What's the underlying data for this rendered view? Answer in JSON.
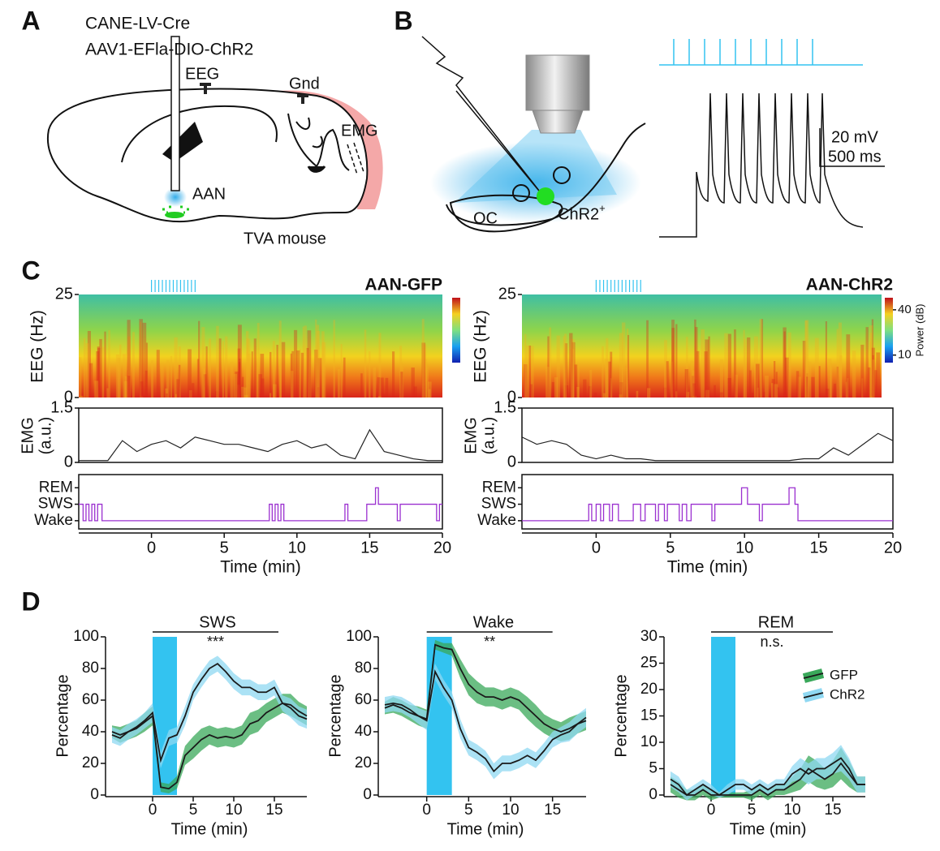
{
  "panel_labels": [
    "A",
    "B",
    "C",
    "D"
  ],
  "schematic_a": {
    "virus_lines": [
      "CANE-LV-Cre",
      "AAV1-EFla-DIO-ChR2"
    ],
    "eeg": "EEG",
    "gnd": "Gnd",
    "emg": "EMG",
    "aan": "AAN",
    "mouse": "TVA mouse"
  },
  "schematic_b": {
    "oc": "OC",
    "chr2": "ChR2",
    "chr2_sup": "+",
    "scale_v": "20 mV",
    "scale_t": "500 ms"
  },
  "chart_data": [
    {
      "type": "recording",
      "title": "AAN-GFP",
      "title_color": "#1f9a4b",
      "xlim": [
        -5,
        20
      ],
      "xticks": [
        0,
        5,
        10,
        15,
        20
      ],
      "xlabel": "Time (min)",
      "stimulus": [
        0,
        3
      ],
      "stimulus_color": "#33c3f0",
      "eeg": {
        "ylabel": "EEG (Hz)",
        "ylim": [
          0,
          25
        ],
        "yticks": [
          0,
          25
        ]
      },
      "emg": {
        "ylabel": [
          "EMG",
          "(a.u.)"
        ],
        "ylim": [
          0,
          1.5
        ],
        "yticks": [
          0,
          1.5
        ],
        "color": "#222222",
        "x": [
          -5,
          -4,
          -3,
          -2,
          -1,
          0,
          1,
          2,
          3,
          4,
          5,
          6,
          7,
          8,
          9,
          10,
          11,
          12,
          13,
          14,
          15,
          16,
          17,
          18,
          19,
          20
        ],
        "values": [
          0.05,
          0.05,
          0.05,
          0.6,
          0.3,
          0.5,
          0.6,
          0.4,
          0.7,
          0.6,
          0.5,
          0.5,
          0.4,
          0.3,
          0.5,
          0.6,
          0.4,
          0.5,
          0.2,
          0.1,
          0.9,
          0.3,
          0.2,
          0.1,
          0.05,
          0.05
        ]
      },
      "hypnogram": {
        "ylim": [
          -0.5,
          2.8
        ],
        "yticks": [
          {
            "value": 0,
            "label": "Wake"
          },
          {
            "value": 1,
            "label": "SWS"
          },
          {
            "value": 2,
            "label": "REM"
          }
        ],
        "color": "#9b30d0",
        "x": [
          -5,
          -4.7,
          -4.5,
          -4.3,
          -4.1,
          -3.9,
          -3.7,
          -3.4,
          8.1,
          8.3,
          8.5,
          8.7,
          8.9,
          9.1,
          13.3,
          13.5,
          14.8,
          15.4,
          15.6,
          16.9,
          17.1,
          19.6,
          19.8,
          20
        ],
        "values": [
          1,
          0,
          1,
          0,
          1,
          0,
          1,
          0,
          1,
          0,
          1,
          0,
          1,
          0,
          1,
          0,
          1,
          2,
          1,
          0,
          1,
          0,
          1,
          1
        ]
      }
    },
    {
      "type": "recording",
      "title": "AAN-ChR2",
      "title_color": "#33b5e5",
      "xlim": [
        -5,
        20
      ],
      "xticks": [
        0,
        5,
        10,
        15,
        20
      ],
      "xlabel": "Time (min)",
      "stimulus": [
        0,
        3
      ],
      "stimulus_color": "#33c3f0",
      "eeg": {
        "ylabel": "EEG (Hz)",
        "ylim": [
          0,
          25
        ],
        "yticks": [
          0,
          25
        ]
      },
      "colorbar": {
        "label": "Power (dB)",
        "clim": [
          5,
          48
        ],
        "ticks": [
          10,
          40
        ]
      },
      "emg": {
        "ylabel": [
          "EMG",
          "(a.u.)"
        ],
        "ylim": [
          0,
          1.5
        ],
        "yticks": [
          0,
          1.5
        ],
        "color": "#222222",
        "x": [
          -5,
          -4,
          -3,
          -2,
          -1,
          0,
          1,
          2,
          3,
          4,
          5,
          6,
          7,
          8,
          9,
          10,
          11,
          12,
          13,
          14,
          15,
          16,
          17,
          18,
          19,
          20
        ],
        "values": [
          0.7,
          0.5,
          0.6,
          0.5,
          0.2,
          0.1,
          0.2,
          0.1,
          0.1,
          0.05,
          0.05,
          0.05,
          0.05,
          0.05,
          0.05,
          0.05,
          0.05,
          0.05,
          0.05,
          0.1,
          0.1,
          0.4,
          0.2,
          0.5,
          0.8,
          0.6
        ]
      },
      "hypnogram": {
        "ylim": [
          -0.5,
          2.8
        ],
        "yticks": [
          {
            "value": 0,
            "label": "Wake"
          },
          {
            "value": 1,
            "label": "SWS"
          },
          {
            "value": 2,
            "label": "REM"
          }
        ],
        "color": "#9b30d0",
        "x": [
          -5,
          -0.5,
          -0.3,
          0,
          0.3,
          0.5,
          0.9,
          1.1,
          1.5,
          2.5,
          3.0,
          3.3,
          4.0,
          4.2,
          4.6,
          4.8,
          5.6,
          5.8,
          6.1,
          6.4,
          7.8,
          8.0,
          9.8,
          10.2,
          11.0,
          11.2,
          13.0,
          13.4,
          13.6,
          20
        ],
        "values": [
          0,
          1,
          0,
          1,
          0,
          1,
          0,
          1,
          0,
          1,
          0,
          1,
          0,
          1,
          0,
          1,
          0,
          1,
          0,
          1,
          0,
          1,
          2,
          1,
          0,
          1,
          2,
          1,
          0,
          0
        ]
      }
    },
    {
      "type": "line",
      "title": "SWS",
      "xlabel": "Time (min)",
      "ylabel": "Percentage",
      "xlim": [
        -5,
        19
      ],
      "xticks": [
        0,
        5,
        10,
        15
      ],
      "ylim": [
        0,
        100
      ],
      "yticks": [
        0,
        20,
        40,
        60,
        80,
        100
      ],
      "stimulus": [
        0,
        3
      ],
      "stimulus_color": "#33c3f0",
      "significance": {
        "label": "***",
        "x": [
          0,
          15.5
        ]
      },
      "x": [
        -5,
        -4,
        -3,
        -2,
        -1,
        0,
        1,
        2,
        3,
        4,
        5,
        6,
        7,
        8,
        9,
        10,
        11,
        12,
        13,
        14,
        15,
        16,
        17,
        18,
        19
      ],
      "series": [
        {
          "color": "#3aa85a",
          "line_color": "#1a1a1a",
          "values": [
            40,
            38,
            40,
            42,
            46,
            50,
            5,
            4,
            8,
            25,
            30,
            35,
            38,
            36,
            37,
            36,
            38,
            45,
            47,
            52,
            55,
            58,
            57,
            53,
            50
          ],
          "errors": [
            4,
            5,
            5,
            5,
            6,
            6,
            3,
            3,
            4,
            6,
            7,
            7,
            6,
            6,
            6,
            6,
            6,
            7,
            7,
            6,
            6,
            6,
            7,
            6,
            6
          ]
        },
        {
          "color": "#8fd8f2",
          "line_color": "#1a1a1a",
          "values": [
            38,
            36,
            40,
            43,
            47,
            52,
            22,
            36,
            38,
            50,
            65,
            73,
            80,
            83,
            78,
            72,
            68,
            68,
            65,
            65,
            68,
            58,
            55,
            50,
            48
          ],
          "errors": [
            5,
            5,
            5,
            5,
            5,
            6,
            5,
            5,
            5,
            6,
            5,
            5,
            5,
            5,
            5,
            5,
            5,
            5,
            5,
            5,
            5,
            5,
            6,
            6,
            6
          ]
        }
      ]
    },
    {
      "type": "line",
      "title": "Wake",
      "xlabel": "Time (min)",
      "ylabel": "Percentage",
      "xlim": [
        -5,
        19
      ],
      "xticks": [
        0,
        5,
        10,
        15
      ],
      "ylim": [
        0,
        100
      ],
      "yticks": [
        0,
        20,
        40,
        60,
        80,
        100
      ],
      "stimulus": [
        0,
        3
      ],
      "stimulus_color": "#33c3f0",
      "significance": {
        "label": "**",
        "x": [
          0,
          15
        ]
      },
      "x": [
        -5,
        -4,
        -3,
        -2,
        -1,
        0,
        1,
        2,
        3,
        4,
        5,
        6,
        7,
        8,
        9,
        10,
        11,
        12,
        13,
        14,
        15,
        16,
        17,
        18,
        19
      ],
      "series": [
        {
          "color": "#3aa85a",
          "line_color": "#1a1a1a",
          "values": [
            55,
            57,
            55,
            52,
            50,
            48,
            95,
            93,
            92,
            80,
            70,
            65,
            62,
            62,
            60,
            62,
            60,
            55,
            50,
            45,
            42,
            40,
            42,
            45,
            47
          ],
          "errors": [
            4,
            5,
            5,
            5,
            6,
            6,
            3,
            3,
            4,
            6,
            7,
            7,
            6,
            6,
            6,
            6,
            6,
            7,
            7,
            6,
            6,
            6,
            7,
            6,
            6
          ]
        },
        {
          "color": "#8fd8f2",
          "line_color": "#1a1a1a",
          "values": [
            57,
            58,
            57,
            54,
            50,
            47,
            78,
            68,
            60,
            42,
            30,
            27,
            23,
            15,
            20,
            20,
            22,
            25,
            22,
            28,
            35,
            38,
            40,
            45,
            49
          ],
          "errors": [
            5,
            5,
            5,
            5,
            5,
            6,
            5,
            5,
            5,
            6,
            5,
            5,
            5,
            5,
            5,
            5,
            5,
            5,
            5,
            5,
            5,
            5,
            6,
            6,
            6
          ]
        }
      ]
    },
    {
      "type": "line",
      "title": "REM",
      "xlabel": "Time (min)",
      "ylabel": "Percentage",
      "xlim": [
        -5,
        19
      ],
      "xticks": [
        0,
        5,
        10,
        15
      ],
      "ylim": [
        0,
        30
      ],
      "yticks": [
        0,
        5,
        10,
        15,
        20,
        25,
        30
      ],
      "stimulus": [
        0,
        3
      ],
      "stimulus_color": "#33c3f0",
      "significance": {
        "label": "n.s.",
        "x": [
          0,
          15
        ]
      },
      "legend": "upper right",
      "x": [
        -5,
        -4,
        -3,
        -2,
        -1,
        0,
        1,
        2,
        3,
        4,
        5,
        6,
        7,
        8,
        9,
        10,
        11,
        12,
        13,
        14,
        15,
        16,
        17,
        18,
        19
      ],
      "series": [
        {
          "name": "GFP",
          "color": "#3aa85a",
          "line_color": "#1a1a1a",
          "values": [
            2,
            1,
            0,
            0,
            1,
            0,
            0,
            0,
            0,
            0,
            0,
            1,
            0,
            1,
            1,
            2,
            3,
            5,
            4,
            3,
            4,
            6,
            4,
            2,
            2
          ],
          "errors": [
            1.5,
            1.5,
            1,
            1,
            1,
            1,
            0.5,
            0.5,
            0.5,
            0.5,
            1,
            1,
            1,
            1,
            1,
            1.5,
            2,
            2.5,
            2.5,
            2,
            2.5,
            3,
            2.5,
            1.5,
            1.5
          ]
        },
        {
          "name": "ChR2",
          "color": "#8fd8f2",
          "line_color": "#1a1a1a",
          "values": [
            3,
            2,
            0,
            1,
            2,
            1,
            0,
            1,
            2,
            2,
            1,
            2,
            1,
            2,
            2,
            4,
            5,
            4,
            5,
            5,
            6,
            7,
            5,
            2,
            2
          ],
          "errors": [
            1.5,
            1.5,
            1,
            1,
            1,
            1,
            0.5,
            1,
            1,
            1,
            1,
            1,
            1,
            1,
            1,
            1.5,
            2,
            2,
            2,
            2,
            2,
            2.5,
            2,
            1.5,
            1.5
          ]
        }
      ]
    }
  ]
}
